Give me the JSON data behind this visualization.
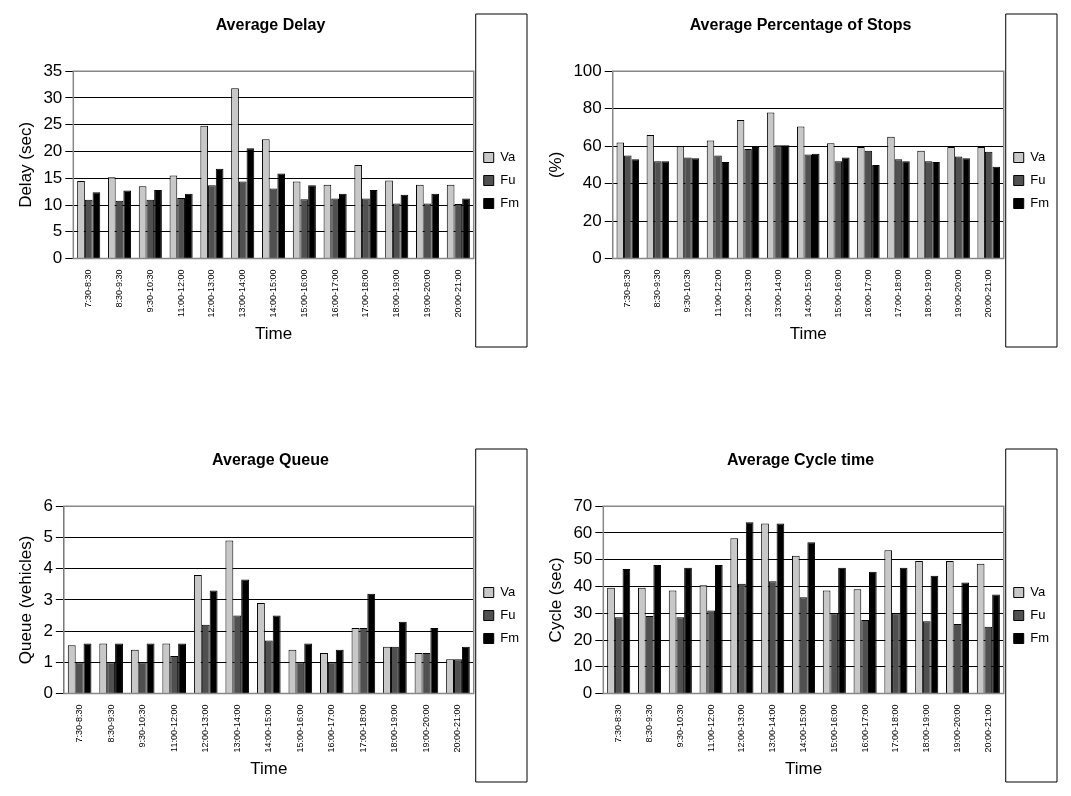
{
  "chart_data": [
    {
      "type": "bar",
      "title": "Average Delay",
      "xlabel": "Time",
      "ylabel": "Delay (sec)",
      "categories": [
        "7:30-8:30",
        "8:30-9:30",
        "9:30-10:30",
        "11:00-12:00",
        "12:00-13:00",
        "13:00-14:00",
        "14:00-15:00",
        "15:00-16:00",
        "16:00-17:00",
        "17:00-18:00",
        "18:00-19:00",
        "19:00-20:00",
        "20:00-21:00"
      ],
      "series": [
        {
          "name": "Va",
          "color": "#c8c8c8",
          "values": [
            14.5,
            15.2,
            13.5,
            15.5,
            24.8,
            31.8,
            22.3,
            14.4,
            13.8,
            17.5,
            14.6,
            13.8,
            13.8
          ]
        },
        {
          "name": "Fu",
          "color": "#505050",
          "values": [
            11,
            10.8,
            11,
            11.3,
            13.7,
            14.4,
            13.1,
            11.1,
            11.2,
            11.2,
            10.3,
            10.3,
            10.2
          ]
        },
        {
          "name": "Fm",
          "color": "#000000",
          "values": [
            12.4,
            12.7,
            12.8,
            12.1,
            16.8,
            20.6,
            15.9,
            13.7,
            12.1,
            12.8,
            11.9,
            12.1,
            11.2
          ]
        }
      ],
      "ylim": [
        0,
        35
      ],
      "yticks": [
        0,
        5,
        10,
        15,
        20,
        25,
        30,
        35
      ],
      "grid": "y",
      "legend": "right"
    },
    {
      "type": "bar",
      "title": "Average Percentage of Stops",
      "xlabel": "Time",
      "ylabel": "(%)",
      "categories": [
        "7:30-8:30",
        "8:30-9:30",
        "9:30-10:30",
        "11:00-12:00",
        "12:00-13:00",
        "13:00-14:00",
        "14:00-15:00",
        "15:00-16:00",
        "16:00-17:00",
        "17:00-18:00",
        "18:00-19:00",
        "19:00-20:00",
        "20:00-21:00"
      ],
      "series": [
        {
          "name": "Va",
          "color": "#c8c8c8",
          "values": [
            62,
            66,
            60,
            63,
            74,
            78,
            70.5,
            61.5,
            59.5,
            65,
            57.5,
            59.5,
            59.5
          ]
        },
        {
          "name": "Fu",
          "color": "#505050",
          "values": [
            55,
            52,
            54,
            55,
            58.5,
            60.5,
            55.5,
            52,
            57.5,
            53,
            52,
            54.5,
            57
          ]
        },
        {
          "name": "Fm",
          "color": "#000000",
          "values": [
            53,
            52,
            53.5,
            51.5,
            59.5,
            60.5,
            56,
            54,
            50,
            52,
            51.5,
            53.5,
            49
          ]
        }
      ],
      "ylim": [
        0,
        100
      ],
      "yticks": [
        0,
        20,
        40,
        60,
        80,
        100
      ],
      "grid": "y",
      "legend": "right"
    },
    {
      "type": "bar",
      "title": "Average Queue",
      "xlabel": "Time",
      "ylabel": "Queue (vehicles)",
      "categories": [
        "7:30-8:30",
        "8:30-9:30",
        "9:30-10:30",
        "11:00-12:00",
        "12:00-13:00",
        "13:00-14:00",
        "14:00-15:00",
        "15:00-16:00",
        "16:00-17:00",
        "17:00-18:00",
        "18:00-19:00",
        "19:00-20:00",
        "20:00-21:00"
      ],
      "series": [
        {
          "name": "Va",
          "color": "#c8c8c8",
          "values": [
            1.55,
            1.6,
            1.4,
            1.6,
            3.8,
            4.9,
            2.9,
            1.4,
            1.3,
            2.1,
            1.5,
            1.3,
            1.1
          ]
        },
        {
          "name": "Fu",
          "color": "#505050",
          "values": [
            1.0,
            1.0,
            1.0,
            1.2,
            2.2,
            2.5,
            1.7,
            1.0,
            1.0,
            2.1,
            1.5,
            1.3,
            1.1
          ]
        },
        {
          "name": "Fm",
          "color": "#000000",
          "values": [
            1.6,
            1.6,
            1.6,
            1.6,
            3.3,
            3.65,
            2.5,
            1.6,
            1.4,
            3.2,
            2.3,
            2.1,
            1.5
          ]
        }
      ],
      "ylim": [
        0,
        6
      ],
      "yticks": [
        0,
        1,
        2,
        3,
        4,
        5,
        6
      ],
      "grid": "y",
      "legend": "right"
    },
    {
      "type": "bar",
      "title": "Average Cycle time",
      "xlabel": "Time",
      "ylabel": "Cycle (sec)",
      "categories": [
        "7:30-8:30",
        "8:30-9:30",
        "9:30-10:30",
        "11:00-12:00",
        "12:00-13:00",
        "13:00-14:00",
        "14:00-15:00",
        "15:00-16:00",
        "16:00-17:00",
        "17:00-18:00",
        "18:00-19:00",
        "19:00-20:00",
        "20:00-21:00"
      ],
      "series": [
        {
          "name": "Va",
          "color": "#c8c8c8",
          "values": [
            39.5,
            39.5,
            38.5,
            40.5,
            58,
            63.5,
            51.5,
            38.5,
            39,
            53.5,
            49.5,
            49.5,
            48.5
          ]
        },
        {
          "name": "Fu",
          "color": "#505050",
          "values": [
            28.5,
            29,
            28.5,
            31,
            41,
            42,
            36,
            30,
            27.5,
            30,
            27,
            26,
            25
          ]
        },
        {
          "name": "Fm",
          "color": "#000000",
          "values": [
            46.5,
            48,
            47,
            48,
            64,
            63.5,
            56.5,
            47,
            45.5,
            47,
            44,
            41.5,
            37
          ]
        }
      ],
      "ylim": [
        0,
        70
      ],
      "yticks": [
        0,
        10,
        20,
        30,
        40,
        50,
        60,
        70
      ],
      "grid": "y",
      "legend": "right"
    }
  ]
}
